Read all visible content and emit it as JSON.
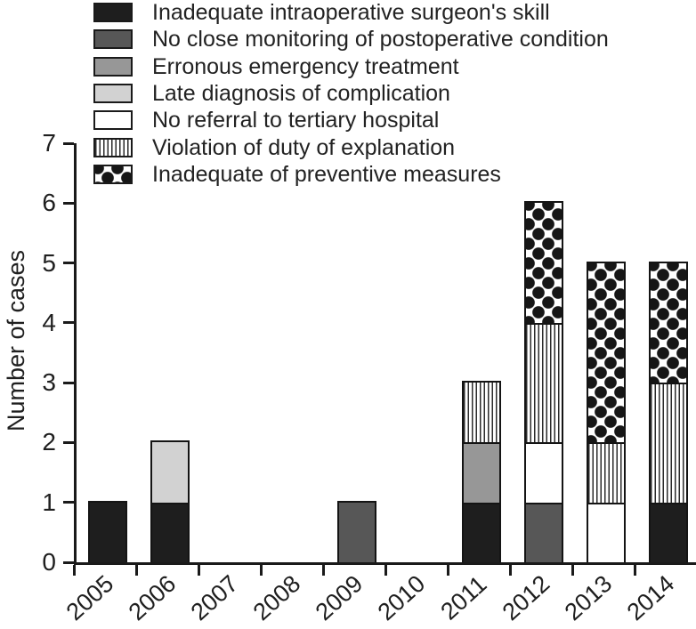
{
  "figure": {
    "background": "#ffffff",
    "text_color": "#1a1a1a"
  },
  "legend": {
    "position": "top-left",
    "items": [
      {
        "key": "skill",
        "label": "Inadequate intraoperative surgeon's skill",
        "fill": "solid",
        "color": "#1e1e1e"
      },
      {
        "key": "monitoring",
        "label": "No close monitoring of postoperative condition",
        "fill": "solid",
        "color": "#575757"
      },
      {
        "key": "emergency",
        "label": "Erronous emergency treatment",
        "fill": "solid",
        "color": "#979797"
      },
      {
        "key": "late",
        "label": "Late diagnosis of complication",
        "fill": "solid",
        "color": "#d2d2d2"
      },
      {
        "key": "referral",
        "label": "No referral to tertiary hospital",
        "fill": "solid",
        "color": "#ffffff"
      },
      {
        "key": "explanation",
        "label": "Violation of duty of explanation",
        "fill": "stripes",
        "color": "#2b2b2b"
      },
      {
        "key": "preventive",
        "label": "Inadequate of preventive measures",
        "fill": "dots",
        "color": "#161616"
      }
    ]
  },
  "chart_data": {
    "type": "bar",
    "stacked": true,
    "title": "",
    "xlabel": "",
    "ylabel": "Number of cases",
    "ylim": [
      0,
      7
    ],
    "y_ticks": [
      0,
      1,
      2,
      3,
      4,
      5,
      6,
      7
    ],
    "grid": false,
    "categories": [
      "2005",
      "2006",
      "2007",
      "2008",
      "2009",
      "2010",
      "2011",
      "2012",
      "2013",
      "2014"
    ],
    "series": [
      {
        "key": "skill",
        "name": "Inadequate intraoperative surgeon's skill",
        "values": [
          1,
          1,
          0,
          0,
          0,
          0,
          1,
          0,
          0,
          1
        ]
      },
      {
        "key": "monitoring",
        "name": "No close monitoring of postoperative condition",
        "values": [
          0,
          0,
          0,
          0,
          1,
          0,
          0,
          1,
          0,
          0
        ]
      },
      {
        "key": "emergency",
        "name": "Erronous emergency treatment",
        "values": [
          0,
          0,
          0,
          0,
          0,
          0,
          1,
          0,
          0,
          0
        ]
      },
      {
        "key": "late",
        "name": "Late diagnosis of complication",
        "values": [
          0,
          1,
          0,
          0,
          0,
          0,
          0,
          0,
          0,
          0
        ]
      },
      {
        "key": "referral",
        "name": "No referral to tertiary hospital",
        "values": [
          0,
          0,
          0,
          0,
          0,
          0,
          0,
          1,
          1,
          0
        ]
      },
      {
        "key": "explanation",
        "name": "Violation of duty of explanation",
        "values": [
          0,
          0,
          0,
          0,
          0,
          0,
          1,
          2,
          1,
          2
        ]
      },
      {
        "key": "preventive",
        "name": "Inadequate of preventive measures",
        "values": [
          0,
          0,
          0,
          0,
          0,
          0,
          0,
          2,
          3,
          2
        ]
      }
    ],
    "totals": [
      1,
      2,
      0,
      0,
      1,
      0,
      3,
      6,
      5,
      5
    ]
  }
}
